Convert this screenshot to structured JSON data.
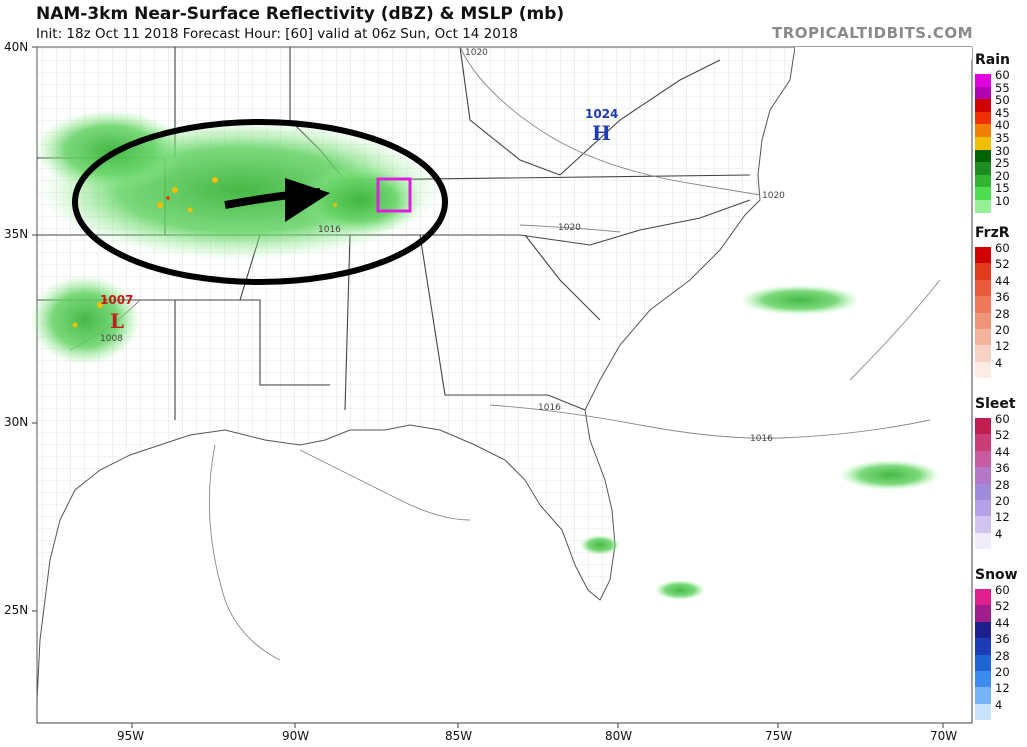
{
  "header": {
    "title": "NAM-3km Near-Surface Reflectivity (dBZ) & MSLP (mb)",
    "subtitle": "Init: 18z Oct 11 2018   Forecast Hour: [60]   valid at 06z Sun, Oct 14 2018",
    "brand": "TROPICALTIDBITS.COM"
  },
  "axes": {
    "lat_labels": [
      "40N",
      "35N",
      "30N",
      "25N"
    ],
    "lon_labels": [
      "95W",
      "90W",
      "85W",
      "80W",
      "75W",
      "70W"
    ]
  },
  "pressure": {
    "high_value": "1024",
    "high_symbol": "H",
    "low_value": "1007",
    "low_symbol": "L",
    "isobars": [
      "1020",
      "1020",
      "1020",
      "1016",
      "1016",
      "1016",
      "1008"
    ]
  },
  "legend": {
    "rain": {
      "title": "Rain",
      "labels": [
        "60",
        "55",
        "50",
        "45",
        "40",
        "35",
        "30",
        "25",
        "20",
        "15",
        "10"
      ],
      "colors": [
        "#e000e0",
        "#b000b0",
        "#d00000",
        "#f03000",
        "#f08000",
        "#f0c000",
        "#006400",
        "#1e8c1e",
        "#32b432",
        "#50dc50",
        "#96f096"
      ]
    },
    "frzr": {
      "title": "FrzR",
      "labels": [
        "60",
        "52",
        "44",
        "36",
        "28",
        "20",
        "12",
        "4"
      ],
      "colors": [
        "#d00000",
        "#e03c1e",
        "#e85a3c",
        "#f0785a",
        "#f09678",
        "#f4b49c",
        "#f8d2c4",
        "#fcece6"
      ]
    },
    "sleet": {
      "title": "Sleet",
      "labels": [
        "60",
        "52",
        "44",
        "36",
        "28",
        "20",
        "12",
        "4"
      ],
      "colors": [
        "#c01e50",
        "#c83c78",
        "#c85aa0",
        "#b478c8",
        "#a08cdc",
        "#b4a0e6",
        "#d2c4f0",
        "#f0ecfa"
      ]
    },
    "snow": {
      "title": "Snow",
      "labels": [
        "60",
        "52",
        "44",
        "36",
        "28",
        "20",
        "12",
        "4"
      ],
      "colors": [
        "#e01e8c",
        "#a01e8c",
        "#1e1e8c",
        "#1e3cb4",
        "#1e64d2",
        "#3c8cf0",
        "#78b4f8",
        "#c8e2fc"
      ]
    }
  }
}
